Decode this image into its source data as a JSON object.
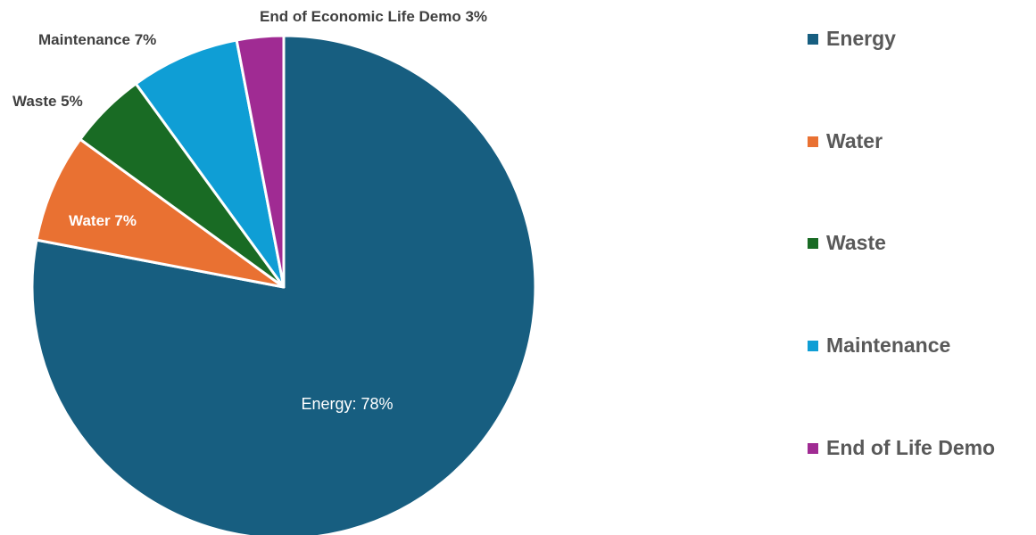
{
  "chart_data": {
    "type": "pie",
    "title": "",
    "slices": [
      {
        "name": "Energy",
        "value": 78,
        "color": "#175e80",
        "data_label": "Energy: 78%"
      },
      {
        "name": "Water",
        "value": 7,
        "color": "#e97132",
        "data_label": "Water 7%"
      },
      {
        "name": "Waste",
        "value": 5,
        "color": "#196b24",
        "data_label": "Waste 5%"
      },
      {
        "name": "Maintenance",
        "value": 7,
        "color": "#0f9ed5",
        "data_label": "Maintenance 7%"
      },
      {
        "name": "End of Life Demo",
        "value": 3,
        "color": "#a02b93",
        "data_label": "End of Economic Life Demo 3%"
      }
    ],
    "legend": {
      "position": "right",
      "entries": [
        "Energy",
        "Water",
        "Waste",
        "Maintenance",
        "End of Life Demo"
      ]
    },
    "start_angle": "top (12 o'clock)",
    "direction": "clockwise"
  }
}
